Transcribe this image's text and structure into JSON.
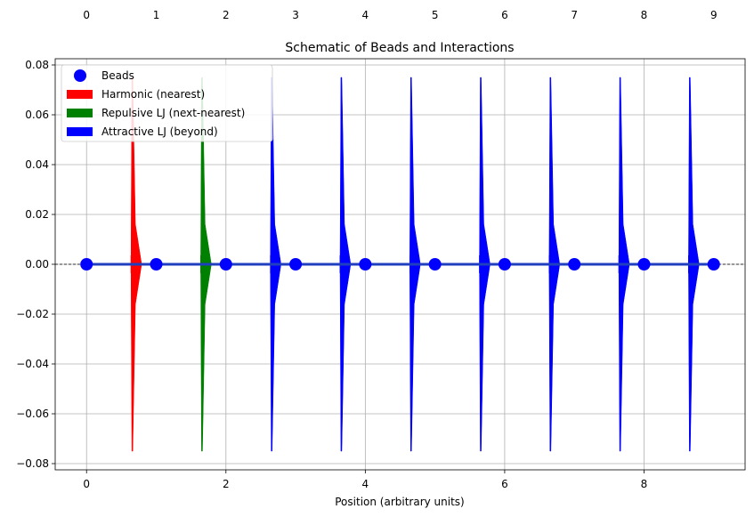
{
  "chart_data": {
    "type": "scatter",
    "title": "Schematic of Beads and Interactions",
    "xlabel": "Position (arbitrary units)",
    "ylabel": "",
    "xlim": [
      -0.45,
      9.45
    ],
    "ylim": [
      -0.0825,
      0.0825
    ],
    "x_ticks": [
      0,
      2,
      4,
      6,
      8
    ],
    "y_ticks": [
      -0.08,
      -0.06,
      -0.04,
      -0.02,
      0.0,
      0.02,
      0.04,
      0.06,
      0.08
    ],
    "y_tick_labels": [
      "−0.08",
      "−0.06",
      "−0.04",
      "−0.02",
      "0.00",
      "0.02",
      "0.04",
      "0.06",
      "0.08"
    ],
    "top_labels": [
      "0",
      "1",
      "2",
      "3",
      "4",
      "5",
      "6",
      "7",
      "8",
      "9"
    ],
    "grid": true,
    "legend_position": "top-left",
    "series": [
      {
        "name": "Beads",
        "kind": "points",
        "color": "#0000ff",
        "x": [
          0,
          1,
          2,
          3,
          4,
          5,
          6,
          7,
          8,
          9
        ],
        "y": [
          0,
          0,
          0,
          0,
          0,
          0,
          0,
          0,
          0,
          0
        ]
      },
      {
        "name": "Harmonic (nearest)",
        "kind": "arrows",
        "color": "#ff0000",
        "x": [
          0.65
        ],
        "y_range": [
          -0.075,
          0.075
        ]
      },
      {
        "name": "Repulsive LJ (next-nearest)",
        "kind": "arrows",
        "color": "#008000",
        "x": [
          1.65
        ],
        "y_range": [
          -0.075,
          0.075
        ]
      },
      {
        "name": "Attractive LJ (beyond)",
        "kind": "arrows",
        "color": "#0000ff",
        "x": [
          2.65,
          3.65,
          4.65,
          5.65,
          6.65,
          7.65,
          8.65
        ],
        "y_range": [
          -0.075,
          0.075
        ]
      }
    ],
    "hline": {
      "y": 0.0,
      "color": "#000000",
      "style": "dashed"
    }
  }
}
